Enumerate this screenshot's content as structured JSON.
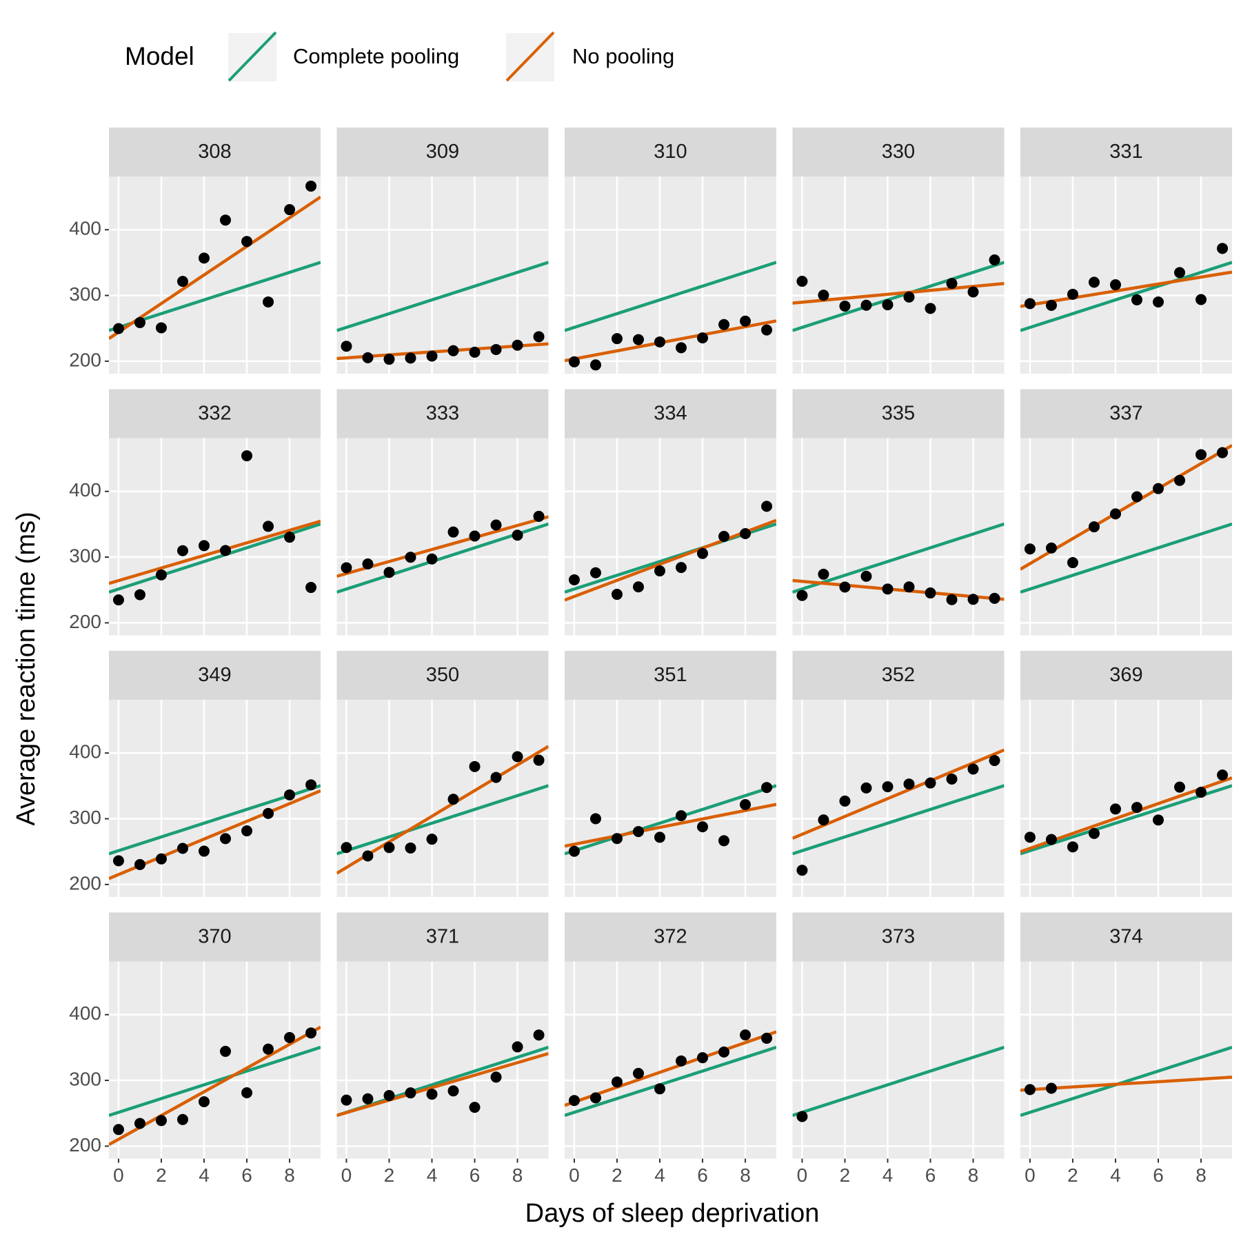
{
  "chart_data": {
    "type": "scatter",
    "legend_title": "Model",
    "x_label": "Days of sleep deprivation",
    "y_label": "Average reaction time (ms)",
    "xlim": [
      -0.45,
      9.45
    ],
    "ylim": [
      181,
      481
    ],
    "xticks": [
      0,
      2,
      4,
      6,
      8
    ],
    "yticks": [
      200,
      300,
      400
    ],
    "grid": true,
    "point_color": "#000000",
    "series": [
      {
        "name": "Complete pooling",
        "color": "#1b9e77"
      },
      {
        "name": "No pooling",
        "color": "#d95f02"
      }
    ],
    "panels": [
      {
        "label": "308",
        "x": [
          0,
          1,
          2,
          3,
          4,
          5,
          6,
          7,
          8,
          9
        ],
        "values": [
          249.56,
          258.7,
          250.8,
          321.44,
          356.85,
          414.69,
          382.2,
          290.15,
          430.59,
          466.35
        ],
        "fits": [
          {
            "intercept": 251.4,
            "slope": 10.47
          },
          {
            "intercept": 244.19,
            "slope": 21.76
          }
        ]
      },
      {
        "label": "309",
        "x": [
          0,
          1,
          2,
          3,
          4,
          5,
          6,
          7,
          8,
          9
        ],
        "values": [
          222.73,
          205.27,
          202.98,
          204.71,
          207.72,
          215.96,
          213.63,
          217.73,
          224.3,
          237.31
        ],
        "fits": [
          {
            "intercept": 251.4,
            "slope": 10.47
          },
          {
            "intercept": 205.06,
            "slope": 2.26
          }
        ]
      },
      {
        "label": "310",
        "x": [
          0,
          1,
          2,
          3,
          4,
          5,
          6,
          7,
          8,
          9
        ],
        "values": [
          199.05,
          194.33,
          234.32,
          232.84,
          229.31,
          220.46,
          235.42,
          255.75,
          261.01,
          247.52
        ],
        "fits": [
          {
            "intercept": 251.4,
            "slope": 10.47
          },
          {
            "intercept": 203.48,
            "slope": 6.12
          }
        ]
      },
      {
        "label": "330",
        "x": [
          0,
          1,
          2,
          3,
          4,
          5,
          6,
          7,
          8,
          9
        ],
        "values": [
          321.54,
          300.4,
          283.86,
          285.13,
          285.8,
          297.59,
          280.24,
          318.26,
          305.35,
          354.05
        ],
        "fits": [
          {
            "intercept": 251.4,
            "slope": 10.47
          },
          {
            "intercept": 289.69,
            "slope": 3.01
          }
        ]
      },
      {
        "label": "331",
        "x": [
          0,
          1,
          2,
          3,
          4,
          5,
          6,
          7,
          8,
          9
        ],
        "values": [
          287.61,
          285.0,
          301.82,
          320.12,
          316.28,
          293.32,
          290.08,
          334.82,
          293.75,
          371.58
        ],
        "fits": [
          {
            "intercept": 251.4,
            "slope": 10.47
          },
          {
            "intercept": 285.74,
            "slope": 5.27
          }
        ]
      },
      {
        "label": "332",
        "x": [
          0,
          1,
          2,
          3,
          4,
          5,
          6,
          7,
          8,
          9
        ],
        "values": [
          234.86,
          242.81,
          272.96,
          309.77,
          317.46,
          309.99,
          454.16,
          346.83,
          330.3,
          253.86
        ],
        "fits": [
          {
            "intercept": 251.4,
            "slope": 10.47
          },
          {
            "intercept": 264.25,
            "slope": 9.57
          }
        ]
      },
      {
        "label": "333",
        "x": [
          0,
          1,
          2,
          3,
          4,
          5,
          6,
          7,
          8,
          9
        ],
        "values": [
          283.84,
          289.55,
          276.77,
          299.81,
          297.17,
          338.17,
          332.02,
          348.84,
          333.36,
          362.04
        ],
        "fits": [
          {
            "intercept": 251.4,
            "slope": 10.47
          },
          {
            "intercept": 275.02,
            "slope": 9.14
          }
        ]
      },
      {
        "label": "334",
        "x": [
          0,
          1,
          2,
          3,
          4,
          5,
          6,
          7,
          8,
          9
        ],
        "values": [
          265.48,
          276.2,
          243.36,
          254.68,
          279.02,
          284.19,
          305.53,
          331.5,
          335.75,
          377.3
        ],
        "fits": [
          {
            "intercept": 251.4,
            "slope": 10.47
          },
          {
            "intercept": 240.16,
            "slope": 12.25
          }
        ]
      },
      {
        "label": "335",
        "x": [
          0,
          1,
          2,
          3,
          4,
          5,
          6,
          7,
          8,
          9
        ],
        "values": [
          241.61,
          273.95,
          254.49,
          270.84,
          251.45,
          254.64,
          245.45,
          235.31,
          235.75,
          237.25
        ],
        "fits": [
          {
            "intercept": 251.4,
            "slope": 10.47
          },
          {
            "intercept": 263.04,
            "slope": -2.88
          }
        ]
      },
      {
        "label": "337",
        "x": [
          0,
          1,
          2,
          3,
          4,
          5,
          6,
          7,
          8,
          9
        ],
        "values": [
          312.36,
          313.8,
          291.61,
          346.12,
          365.73,
          391.84,
          404.26,
          416.69,
          455.86,
          458.92
        ],
        "fits": [
          {
            "intercept": 251.4,
            "slope": 10.47
          },
          {
            "intercept": 290.1,
            "slope": 19.03
          }
        ]
      },
      {
        "label": "349",
        "x": [
          0,
          1,
          2,
          3,
          4,
          5,
          6,
          7,
          8,
          9
        ],
        "values": [
          236.1,
          230.32,
          238.92,
          254.92,
          250.71,
          269.77,
          281.56,
          308.1,
          336.28,
          351.65
        ],
        "fits": [
          {
            "intercept": 251.4,
            "slope": 10.47
          },
          {
            "intercept": 215.11,
            "slope": 13.49
          }
        ]
      },
      {
        "label": "350",
        "x": [
          0,
          1,
          2,
          3,
          4,
          5,
          6,
          7,
          8,
          9
        ],
        "values": [
          256.29,
          243.46,
          256.2,
          255.53,
          268.92,
          329.72,
          379.44,
          362.91,
          394.49,
          389.05
        ],
        "fits": [
          {
            "intercept": 251.4,
            "slope": 10.47
          },
          {
            "intercept": 225.84,
            "slope": 19.5
          }
        ]
      },
      {
        "label": "351",
        "x": [
          0,
          1,
          2,
          3,
          4,
          5,
          6,
          7,
          8,
          9
        ],
        "values": [
          250.53,
          300.06,
          269.89,
          280.58,
          271.83,
          304.63,
          287.75,
          266.56,
          321.54,
          347.56
        ],
        "fits": [
          {
            "intercept": 251.4,
            "slope": 10.47
          },
          {
            "intercept": 261.15,
            "slope": 6.43
          }
        ]
      },
      {
        "label": "352",
        "x": [
          0,
          1,
          2,
          3,
          4,
          5,
          6,
          7,
          8,
          9
        ],
        "values": [
          221.68,
          298.19,
          326.88,
          346.86,
          348.74,
          352.83,
          354.42,
          360.42,
          375.64,
          388.54
        ],
        "fits": [
          {
            "intercept": 251.4,
            "slope": 10.47
          },
          {
            "intercept": 276.37,
            "slope": 13.57
          }
        ]
      },
      {
        "label": "369",
        "x": [
          0,
          1,
          2,
          3,
          4,
          5,
          6,
          7,
          8,
          9
        ],
        "values": [
          271.92,
          268.44,
          257.24,
          277.66,
          314.82,
          317.21,
          298.14,
          348.12,
          340.28,
          366.51
        ],
        "fits": [
          {
            "intercept": 251.4,
            "slope": 10.47
          },
          {
            "intercept": 254.97,
            "slope": 11.35
          }
        ]
      },
      {
        "label": "370",
        "x": [
          0,
          1,
          2,
          3,
          4,
          5,
          6,
          7,
          8,
          9
        ],
        "values": [
          225.26,
          234.53,
          238.9,
          240.47,
          267.54,
          344.19,
          281.15,
          347.59,
          365.16,
          372.23
        ],
        "fits": [
          {
            "intercept": 251.4,
            "slope": 10.47
          },
          {
            "intercept": 210.45,
            "slope": 18.06
          }
        ]
      },
      {
        "label": "371",
        "x": [
          0,
          1,
          2,
          3,
          4,
          5,
          6,
          7,
          8,
          9
        ],
        "values": [
          270,
          272,
          277,
          281,
          279,
          284,
          259,
          305,
          351,
          369
        ],
        "fits": [
          {
            "intercept": 251.4,
            "slope": 10.47
          },
          {
            "intercept": 251,
            "slope": 9.5
          }
        ]
      },
      {
        "label": "372",
        "x": [
          0,
          1,
          2,
          3,
          4,
          5,
          6,
          7,
          8,
          9
        ],
        "values": [
          269.41,
          273.47,
          297.6,
          310.63,
          287.17,
          329.61,
          334.48,
          343.22,
          369.14,
          364.12
        ],
        "fits": [
          {
            "intercept": 251.4,
            "slope": 10.47
          },
          {
            "intercept": 267.05,
            "slope": 11.3
          }
        ]
      },
      {
        "label": "373",
        "x": [
          0
        ],
        "values": [
          245
        ],
        "fits": [
          {
            "intercept": 251.4,
            "slope": 10.47
          },
          null
        ]
      },
      {
        "label": "374",
        "x": [
          0,
          1
        ],
        "values": [
          286,
          288
        ],
        "fits": [
          {
            "intercept": 251.4,
            "slope": 10.47
          },
          {
            "intercept": 286,
            "slope": 2.0
          }
        ]
      }
    ]
  }
}
